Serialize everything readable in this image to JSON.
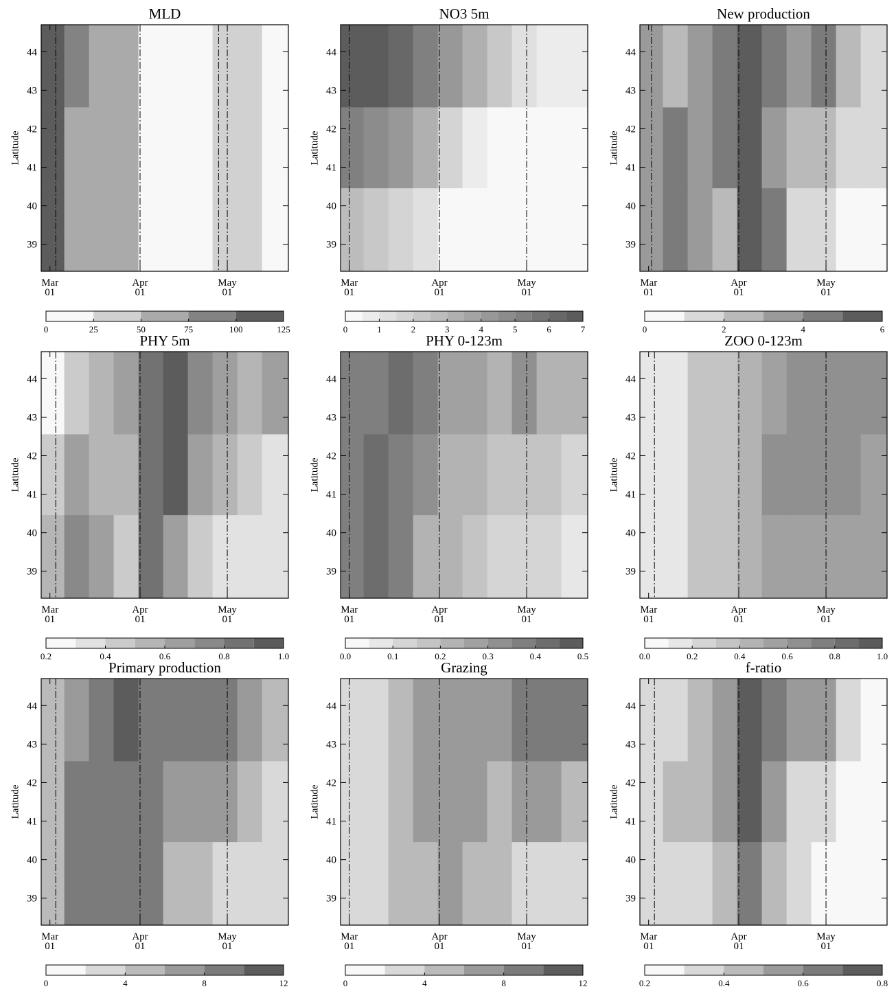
{
  "chart_data": [
    {
      "type": "heatmap",
      "title": "MLD",
      "ylabel": "Latitude",
      "xlim": [
        -3,
        82
      ],
      "ylim": [
        38.3,
        44.7
      ],
      "xticks": [
        {
          "value": 0,
          "label": "Mar"
        },
        {
          "value": 31,
          "label": "Apr"
        },
        {
          "value": 61,
          "label": "May"
        }
      ],
      "xtick_sublabels": [
        "01",
        "01",
        "01"
      ],
      "yticks": [
        39,
        40,
        41,
        42,
        43,
        44
      ],
      "vlines": [
        2,
        31,
        58,
        61
      ],
      "x": [
        1,
        9,
        18,
        26,
        35,
        43,
        52,
        60,
        69,
        77
      ],
      "y": [
        43.6,
        41.5,
        39.4
      ],
      "z": [
        [
          115,
          90,
          70,
          55,
          20,
          10,
          10,
          30,
          40,
          20
        ],
        [
          110,
          60,
          70,
          55,
          20,
          10,
          15,
          30,
          40,
          15
        ],
        [
          110,
          70,
          60,
          55,
          20,
          10,
          15,
          30,
          40,
          20
        ]
      ],
      "levels": [
        0,
        25,
        50,
        75,
        100,
        125
      ],
      "cbticks": [
        0,
        25,
        50,
        75,
        100,
        125
      ]
    },
    {
      "type": "heatmap",
      "title": "NO3 5m",
      "ylabel": "Latitude",
      "xlim": [
        -3,
        82
      ],
      "ylim": [
        38.3,
        44.7
      ],
      "xticks": [
        {
          "value": 0,
          "label": "Mar"
        },
        {
          "value": 31,
          "label": "Apr"
        },
        {
          "value": 61,
          "label": "May"
        }
      ],
      "xtick_sublabels": [
        "01",
        "01",
        "01"
      ],
      "yticks": [
        39,
        40,
        41,
        42,
        43,
        44
      ],
      "vlines": [
        0,
        31,
        61
      ],
      "x": [
        1,
        9,
        18,
        26,
        35,
        43,
        52,
        60,
        69,
        77
      ],
      "y": [
        43.6,
        41.5,
        39.4
      ],
      "z": [
        [
          6.8,
          6.5,
          6,
          5,
          4,
          3,
          2,
          1,
          0.7,
          0.5
        ],
        [
          5,
          4.5,
          4,
          3,
          1.5,
          0.7,
          0.4,
          0.3,
          0.2,
          0.2
        ],
        [
          2.5,
          2,
          1.6,
          1,
          0.3,
          0.2,
          0.1,
          0.1,
          0.1,
          0.1
        ]
      ],
      "levels": [
        0,
        0.5,
        1,
        1.5,
        2,
        2.5,
        3,
        3.5,
        4,
        4.5,
        5,
        5.5,
        6,
        6.5,
        7
      ],
      "cbticks": [
        0,
        1,
        2,
        3,
        4,
        5,
        6,
        7
      ]
    },
    {
      "type": "heatmap",
      "title": "New production",
      "ylabel": "Latitude",
      "xlim": [
        -3,
        82
      ],
      "ylim": [
        38.3,
        44.7
      ],
      "xticks": [
        {
          "value": 0,
          "label": "Mar"
        },
        {
          "value": 31,
          "label": "Apr"
        },
        {
          "value": 61,
          "label": "May"
        }
      ],
      "xtick_sublabels": [
        "01",
        "01",
        "01"
      ],
      "yticks": [
        39,
        40,
        41,
        42,
        43,
        44
      ],
      "vlines": [
        1,
        31,
        61
      ],
      "x": [
        1,
        9,
        18,
        26,
        35,
        43,
        52,
        60,
        69,
        77
      ],
      "y": [
        43.6,
        41.5,
        39.4
      ],
      "z": [
        [
          3,
          2,
          3,
          4.5,
          5.5,
          4,
          3,
          4,
          2,
          1.5
        ],
        [
          3,
          4,
          3,
          4,
          5,
          3,
          2,
          2,
          1.5,
          1
        ],
        [
          3.5,
          4.5,
          3,
          2.5,
          5,
          4,
          1.5,
          1,
          0.8,
          0.8
        ]
      ],
      "levels": [
        0,
        1,
        2,
        3,
        4,
        5,
        6
      ],
      "cbticks": [
        0,
        2,
        4,
        6
      ]
    },
    {
      "type": "heatmap",
      "title": "PHY 5m",
      "ylabel": "Latitude",
      "xlim": [
        -3,
        82
      ],
      "ylim": [
        38.3,
        44.7
      ],
      "xticks": [
        {
          "value": 0,
          "label": "Mar"
        },
        {
          "value": 31,
          "label": "Apr"
        },
        {
          "value": 61,
          "label": "May"
        }
      ],
      "xtick_sublabels": [
        "01",
        "01",
        "01"
      ],
      "yticks": [
        39,
        40,
        41,
        42,
        43,
        44
      ],
      "vlines": [
        2,
        31,
        61
      ],
      "x": [
        1,
        9,
        18,
        26,
        35,
        43,
        52,
        60,
        69,
        77
      ],
      "y": [
        43.6,
        41.5,
        39.4
      ],
      "z": [
        [
          0.25,
          0.4,
          0.5,
          0.6,
          0.8,
          0.9,
          0.75,
          0.6,
          0.55,
          0.65
        ],
        [
          0.4,
          0.6,
          0.5,
          0.5,
          0.8,
          0.9,
          0.6,
          0.5,
          0.45,
          0.35
        ],
        [
          0.5,
          0.7,
          0.6,
          0.4,
          0.8,
          0.6,
          0.4,
          0.3,
          0.3,
          0.3
        ]
      ],
      "levels": [
        0.2,
        0.3,
        0.4,
        0.5,
        0.6,
        0.7,
        0.8,
        0.9,
        1.0
      ],
      "cbticks": [
        0.2,
        0.4,
        0.6,
        0.8,
        {
          "value": 1,
          "label": "1.0"
        }
      ]
    },
    {
      "type": "heatmap",
      "title": "PHY 0-123m",
      "ylabel": "Latitude",
      "xlim": [
        -3,
        82
      ],
      "ylim": [
        38.3,
        44.7
      ],
      "xticks": [
        {
          "value": 0,
          "label": "Mar"
        },
        {
          "value": 31,
          "label": "Apr"
        },
        {
          "value": 61,
          "label": "May"
        }
      ],
      "xtick_sublabels": [
        "01",
        "01",
        "01"
      ],
      "yticks": [
        39,
        40,
        41,
        42,
        43,
        44
      ],
      "vlines": [
        0,
        31,
        61
      ],
      "x": [
        1,
        9,
        18,
        26,
        35,
        43,
        52,
        60,
        69,
        77
      ],
      "y": [
        43.6,
        41.5,
        39.4
      ],
      "z": [
        [
          0.38,
          0.36,
          0.42,
          0.35,
          0.25,
          0.25,
          0.22,
          0.3,
          0.2,
          0.2
        ],
        [
          0.38,
          0.42,
          0.35,
          0.3,
          0.2,
          0.2,
          0.15,
          0.15,
          0.15,
          0.1
        ],
        [
          0.35,
          0.42,
          0.36,
          0.22,
          0.2,
          0.15,
          0.12,
          0.12,
          0.1,
          0.08
        ]
      ],
      "levels": [
        0,
        0.05,
        0.1,
        0.15,
        0.2,
        0.25,
        0.3,
        0.35,
        0.4,
        0.45,
        0.5
      ],
      "cbticks": [
        {
          "value": 0,
          "label": "0.0"
        },
        0.1,
        0.2,
        0.3,
        0.4,
        0.5
      ]
    },
    {
      "type": "heatmap",
      "title": "ZOO 0-123m",
      "ylabel": "Latitude",
      "xlim": [
        -3,
        82
      ],
      "ylim": [
        38.3,
        44.7
      ],
      "xticks": [
        {
          "value": 0,
          "label": "Mar"
        },
        {
          "value": 31,
          "label": "Apr"
        },
        {
          "value": 61,
          "label": "May"
        }
      ],
      "xtick_sublabels": [
        "01",
        "01",
        "01"
      ],
      "yticks": [
        39,
        40,
        41,
        42,
        43,
        44
      ],
      "vlines": [
        2,
        31,
        61
      ],
      "x": [
        1,
        9,
        18,
        26,
        35,
        43,
        52,
        60,
        69,
        77
      ],
      "y": [
        43.6,
        41.5,
        39.4
      ],
      "z": [
        [
          0.1,
          0.15,
          0.3,
          0.35,
          0.45,
          0.55,
          0.6,
          0.65,
          0.65,
          0.65
        ],
        [
          0.1,
          0.15,
          0.3,
          0.35,
          0.45,
          0.65,
          0.65,
          0.6,
          0.6,
          0.55
        ],
        [
          0.1,
          0.15,
          0.3,
          0.35,
          0.45,
          0.55,
          0.55,
          0.55,
          0.55,
          0.55
        ]
      ],
      "levels": [
        0,
        0.1,
        0.2,
        0.3,
        0.4,
        0.5,
        0.6,
        0.7,
        0.8,
        0.9,
        1.0
      ],
      "cbticks": [
        {
          "value": 0,
          "label": "0.0"
        },
        0.2,
        0.4,
        0.6,
        0.8,
        {
          "value": 1,
          "label": "1.0"
        }
      ]
    },
    {
      "type": "heatmap",
      "title": "Primary production",
      "ylabel": "Latitude",
      "xlim": [
        -3,
        82
      ],
      "ylim": [
        38.3,
        44.7
      ],
      "xticks": [
        {
          "value": 0,
          "label": "Mar"
        },
        {
          "value": 31,
          "label": "Apr"
        },
        {
          "value": 61,
          "label": "May"
        }
      ],
      "xtick_sublabels": [
        "01",
        "01",
        "01"
      ],
      "yticks": [
        39,
        40,
        41,
        42,
        43,
        44
      ],
      "vlines": [
        2,
        31,
        61
      ],
      "x": [
        1,
        9,
        18,
        26,
        35,
        43,
        52,
        60,
        69,
        77
      ],
      "y": [
        43.6,
        41.5,
        39.4
      ],
      "z": [
        [
          4,
          6,
          9,
          10,
          9,
          8,
          8,
          9,
          6,
          4
        ],
        [
          4,
          8,
          8,
          9,
          8,
          7,
          6,
          6,
          4,
          3
        ],
        [
          4,
          8,
          8,
          9,
          8,
          5,
          4,
          3,
          3,
          3
        ]
      ],
      "levels": [
        0,
        2,
        4,
        6,
        8,
        10,
        12
      ],
      "cbticks": [
        0,
        4,
        8,
        12
      ]
    },
    {
      "type": "heatmap",
      "title": "Grazing",
      "ylabel": "Latitude",
      "xlim": [
        -3,
        82
      ],
      "ylim": [
        38.3,
        44.7
      ],
      "xticks": [
        {
          "value": 0,
          "label": "Mar"
        },
        {
          "value": 31,
          "label": "Apr"
        },
        {
          "value": 61,
          "label": "May"
        }
      ],
      "xtick_sublabels": [
        "01",
        "01",
        "01"
      ],
      "yticks": [
        39,
        40,
        41,
        42,
        43,
        44
      ],
      "vlines": [
        0,
        31,
        61
      ],
      "x": [
        1,
        9,
        18,
        26,
        35,
        43,
        52,
        60,
        69,
        77
      ],
      "y": [
        43.6,
        41.5,
        39.4
      ],
      "z": [
        [
          2,
          3,
          5,
          6,
          7,
          7,
          7,
          8,
          9,
          8
        ],
        [
          2,
          3,
          5,
          6,
          6,
          6,
          5,
          6,
          6,
          5
        ],
        [
          2,
          3,
          4,
          5,
          6,
          5,
          4,
          3,
          3,
          3
        ]
      ],
      "levels": [
        0,
        2,
        4,
        6,
        8,
        10,
        12
      ],
      "cbticks": [
        0,
        4,
        8,
        12
      ]
    },
    {
      "type": "heatmap",
      "title": "f-ratio",
      "ylabel": "Latitude",
      "xlim": [
        -3,
        82
      ],
      "ylim": [
        38.3,
        44.7
      ],
      "xticks": [
        {
          "value": 0,
          "label": "Mar"
        },
        {
          "value": 31,
          "label": "Apr"
        },
        {
          "value": 61,
          "label": "May"
        }
      ],
      "xtick_sublabels": [
        "01",
        "01",
        "01"
      ],
      "yticks": [
        39,
        40,
        41,
        42,
        43,
        44
      ],
      "vlines": [
        2,
        31,
        61
      ],
      "x": [
        1,
        9,
        18,
        26,
        35,
        43,
        52,
        60,
        69,
        77
      ],
      "y": [
        43.6,
        41.5,
        39.4
      ],
      "z": [
        [
          0.3,
          0.35,
          0.4,
          0.55,
          0.75,
          0.6,
          0.5,
          0.55,
          0.3,
          0.25
        ],
        [
          0.3,
          0.4,
          0.4,
          0.5,
          0.7,
          0.5,
          0.35,
          0.3,
          0.25,
          0.25
        ],
        [
          0.3,
          0.35,
          0.35,
          0.4,
          0.65,
          0.4,
          0.3,
          0.25,
          0.2,
          0.2
        ]
      ],
      "levels": [
        0.2,
        0.3,
        0.4,
        0.5,
        0.6,
        0.7,
        0.8
      ],
      "cbticks": [
        0.2,
        0.4,
        0.6,
        0.8
      ]
    }
  ]
}
